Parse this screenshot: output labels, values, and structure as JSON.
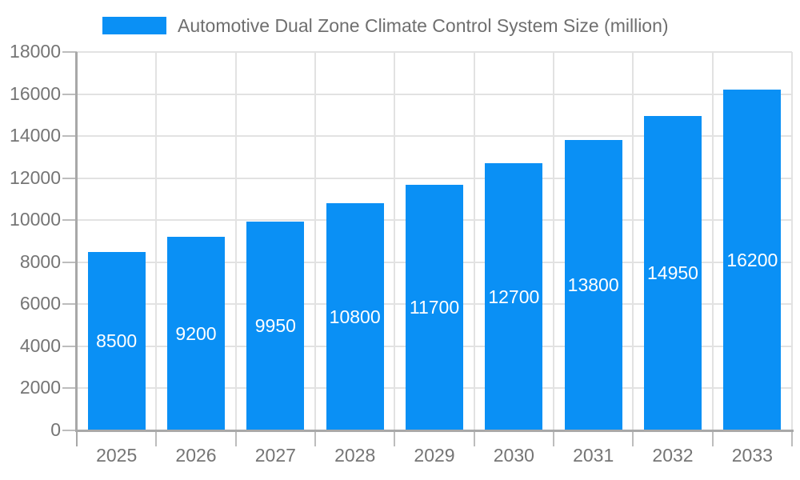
{
  "legend": {
    "label": "Automotive Dual Zone Climate Control System Size (million)"
  },
  "chart_data": {
    "type": "bar",
    "title": "Automotive Dual Zone Climate Control System Size (million)",
    "categories": [
      "2025",
      "2026",
      "2027",
      "2028",
      "2029",
      "2030",
      "2031",
      "2032",
      "2033"
    ],
    "values": [
      8500,
      9200,
      9950,
      10800,
      11700,
      12700,
      13800,
      14950,
      16200
    ],
    "value_labels": [
      "8500",
      "9200",
      "9950",
      "10800",
      "11700",
      "12700",
      "13800",
      "14950",
      "16200"
    ],
    "xlabel": "",
    "ylabel": "",
    "ylim": [
      0,
      18000
    ],
    "yticks": [
      0,
      2000,
      4000,
      6000,
      8000,
      10000,
      12000,
      14000,
      16000,
      18000
    ],
    "grid": true,
    "legend_position": "top",
    "colors": {
      "bar": "#0a90f5",
      "grid": "#e2e2e2",
      "axis": "#a8a8a8",
      "tick": "#bdbdbd",
      "text": "#757575",
      "value_label": "#ffffff"
    }
  }
}
